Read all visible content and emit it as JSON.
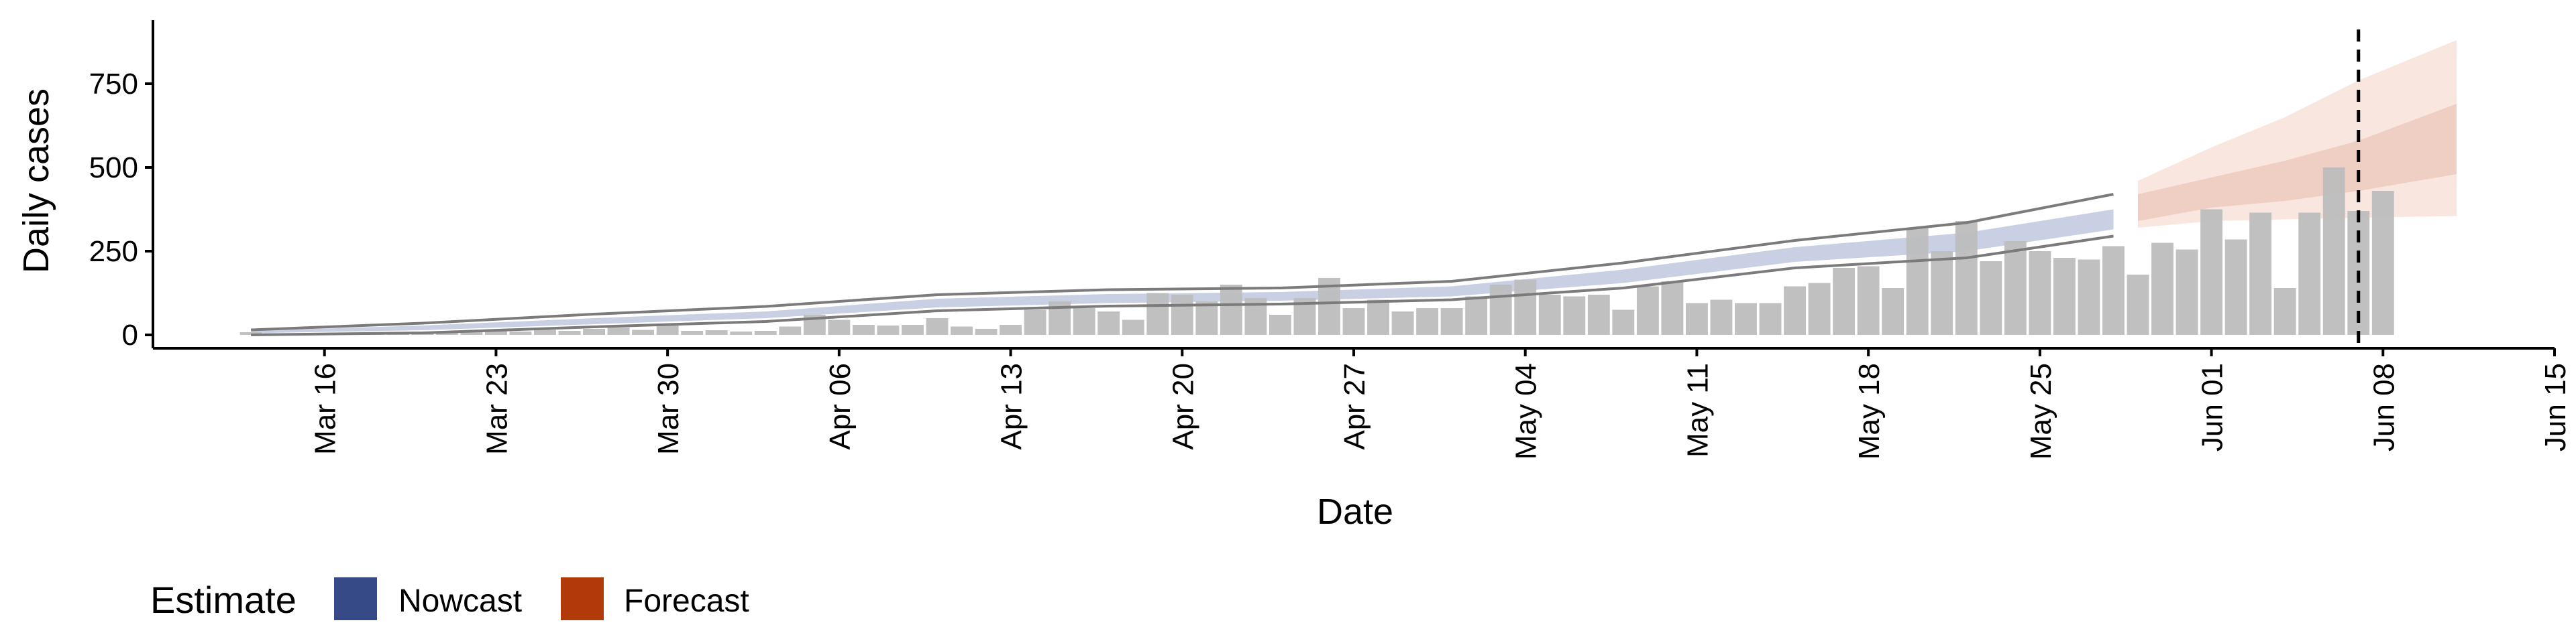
{
  "chart_data": {
    "type": "bar",
    "xlabel": "Date",
    "ylabel": "Daily cases",
    "x_start": "2020-03-13",
    "xlim": [
      "2020-03-09",
      "2020-06-15"
    ],
    "ylim": [
      -40,
      940
    ],
    "y_ticks": [
      0,
      250,
      500,
      750
    ],
    "y_tick_labels": [
      "0",
      "250",
      "500",
      "750"
    ],
    "x_ticks": [
      "2020-03-16",
      "2020-03-23",
      "2020-03-30",
      "2020-04-06",
      "2020-04-13",
      "2020-04-20",
      "2020-04-27",
      "2020-05-04",
      "2020-05-11",
      "2020-05-18",
      "2020-05-25",
      "2020-06-01",
      "2020-06-08",
      "2020-06-15"
    ],
    "x_tick_labels": [
      "Mar 16",
      "Mar 23",
      "Mar 30",
      "Apr 06",
      "Apr 13",
      "Apr 20",
      "Apr 27",
      "May 04",
      "May 11",
      "May 18",
      "May 25",
      "Jun 01",
      "Jun 08",
      "Jun 15"
    ],
    "reference_line_date": "2020-06-07",
    "grid": false,
    "legend_position": "bottom-left",
    "observed_daily_cases": [
      8,
      5,
      4,
      6,
      5,
      8,
      7,
      10,
      8,
      10,
      12,
      10,
      15,
      12,
      18,
      22,
      15,
      28,
      12,
      14,
      10,
      12,
      25,
      60,
      45,
      30,
      28,
      30,
      50,
      25,
      18,
      30,
      75,
      100,
      80,
      70,
      45,
      125,
      120,
      100,
      150,
      110,
      60,
      110,
      170,
      80,
      105,
      70,
      80,
      80,
      115,
      150,
      165,
      120,
      115,
      120,
      75,
      145,
      160,
      95,
      105,
      95,
      95,
      145,
      155,
      200,
      205,
      140,
      320,
      250,
      340,
      220,
      280,
      250,
      230,
      225,
      265,
      180,
      275,
      255,
      375,
      285,
      365,
      140,
      365,
      500,
      370,
      430
    ],
    "nowcast_dates": [
      "2020-03-13",
      "2020-03-20",
      "2020-03-27",
      "2020-04-03",
      "2020-04-10",
      "2020-04-17",
      "2020-04-24",
      "2020-05-01",
      "2020-05-08",
      "2020-05-15",
      "2020-05-22",
      "2020-05-28"
    ],
    "nowcast_median": [
      8,
      20,
      40,
      60,
      95,
      108,
      115,
      130,
      175,
      240,
      275,
      340
    ],
    "nowcast_lower_90": [
      5,
      14,
      32,
      50,
      82,
      95,
      102,
      115,
      155,
      218,
      250,
      315
    ],
    "nowcast_upper_90": [
      12,
      28,
      50,
      70,
      108,
      122,
      128,
      145,
      195,
      262,
      305,
      375
    ],
    "outer_band_lower": [
      0,
      6,
      24,
      40,
      72,
      86,
      92,
      105,
      140,
      200,
      230,
      295
    ],
    "outer_band_upper": [
      15,
      35,
      62,
      85,
      120,
      135,
      140,
      160,
      215,
      282,
      335,
      420
    ],
    "forecast_dates": [
      "2020-05-29",
      "2020-06-01",
      "2020-06-04",
      "2020-06-07",
      "2020-06-11"
    ],
    "forecast_lower_50": [
      340,
      380,
      400,
      430,
      480
    ],
    "forecast_upper_50": [
      420,
      470,
      520,
      580,
      690
    ],
    "forecast_lower_90": [
      320,
      340,
      345,
      350,
      355
    ],
    "forecast_upper_90": [
      460,
      560,
      650,
      760,
      880
    ],
    "legend": {
      "title": "Estimate",
      "entries": [
        {
          "label": "Nowcast",
          "color": "#354a87"
        },
        {
          "label": "Forecast",
          "color": "#b23a0a"
        }
      ]
    },
    "colors": {
      "bar": "#bdbdbd",
      "nowcast_band": "#c9d0e3",
      "forecast_inner": "#efcfc4",
      "forecast_outer": "#f8e6df",
      "line": "#7b7b7b"
    }
  }
}
